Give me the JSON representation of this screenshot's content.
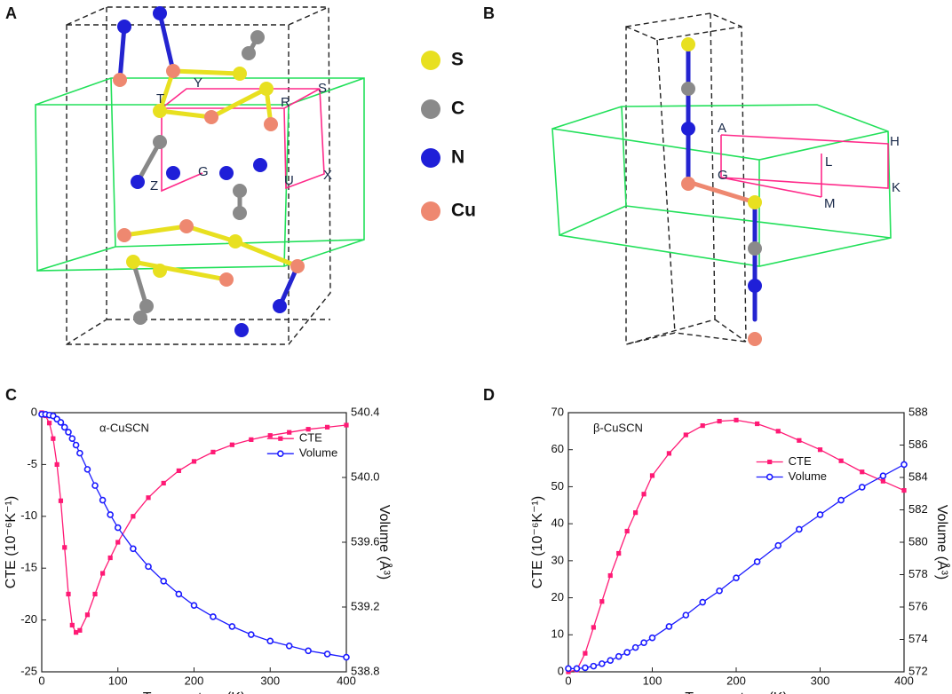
{
  "panel_labels": [
    "A",
    "B",
    "C",
    "D"
  ],
  "structure_a": {
    "atom_legend": [
      "S",
      "C",
      "N",
      "Cu"
    ],
    "kpoints": [
      "T",
      "Y",
      "R",
      "S",
      "Z",
      "G",
      "U",
      "X"
    ]
  },
  "structure_b": {
    "kpoints": [
      "A",
      "H",
      "L",
      "G",
      "K",
      "M"
    ]
  },
  "chart_data": [
    {
      "type": "line",
      "annotation": "α-CuSCN",
      "x_label": "Temperature (K)",
      "y_label": "CTE (10⁻⁶K⁻¹)",
      "y2_label": "Volume (Å³)",
      "legend": "center right",
      "xlim": [
        0,
        400
      ],
      "xticks": [
        0,
        100,
        200,
        300,
        400
      ],
      "ylim": [
        -25,
        0
      ],
      "yticks": [
        0,
        -5,
        -10,
        -15,
        -20,
        -25
      ],
      "y2lim": [
        538.8,
        540.4
      ],
      "y2ticks": [
        538.8,
        539.2,
        539.6,
        {
          "value": 540,
          "label": "540.0"
        },
        540.4
      ],
      "x": [
        0,
        5,
        10,
        15,
        20,
        25,
        30,
        35,
        40,
        45,
        50,
        60,
        70,
        80,
        90,
        100,
        120,
        140,
        160,
        180,
        200,
        225,
        250,
        275,
        300,
        325,
        350,
        375,
        400
      ],
      "series": [
        {
          "name": "CTE",
          "color": "#ff1a75",
          "marker": "square",
          "values": [
            0,
            -0.3,
            -1,
            -2.5,
            -5,
            -8.5,
            -13,
            -17.5,
            -20.5,
            -21.2,
            -21,
            -19.5,
            -17.5,
            -15.5,
            -14,
            -12.5,
            -10,
            -8.2,
            -6.8,
            -5.6,
            -4.7,
            -3.8,
            -3.1,
            -2.6,
            -2.2,
            -1.9,
            -1.6,
            -1.4,
            -1.2
          ]
        },
        {
          "name": "Volume",
          "color": "#1a1aff",
          "marker": "circle",
          "axis": "y2",
          "values": [
            540.39,
            540.39,
            540.385,
            540.38,
            540.36,
            540.34,
            540.31,
            540.28,
            540.24,
            540.2,
            540.15,
            540.05,
            539.95,
            539.86,
            539.77,
            539.69,
            539.56,
            539.45,
            539.36,
            539.28,
            539.21,
            539.14,
            539.08,
            539.03,
            538.99,
            538.96,
            538.93,
            538.91,
            538.89
          ]
        }
      ]
    },
    {
      "type": "line",
      "annotation": "β-CuSCN",
      "x_label": "Temperature (K)",
      "y_label": "CTE (10⁻⁶K⁻¹)",
      "y2_label": "Volume (Å³)",
      "legend": "upper center",
      "xlim": [
        0,
        400
      ],
      "xticks": [
        0,
        100,
        200,
        300,
        400
      ],
      "ylim": [
        0,
        70
      ],
      "yticks": [
        0,
        10,
        20,
        30,
        40,
        50,
        60,
        70
      ],
      "y2lim": [
        572,
        588
      ],
      "y2ticks": [
        572,
        574,
        576,
        578,
        580,
        582,
        584,
        586,
        588
      ],
      "x": [
        0,
        10,
        20,
        30,
        40,
        50,
        60,
        70,
        80,
        90,
        100,
        120,
        140,
        160,
        180,
        200,
        225,
        250,
        275,
        300,
        325,
        350,
        375,
        400
      ],
      "series": [
        {
          "name": "CTE",
          "color": "#ff1a75",
          "marker": "square",
          "values": [
            0,
            0.5,
            5,
            12,
            19,
            26,
            32,
            38,
            43,
            48,
            53,
            59,
            64,
            66.5,
            67.7,
            68,
            67,
            65,
            62.5,
            60,
            57,
            54,
            51.5,
            49
          ]
        },
        {
          "name": "Volume",
          "color": "#1a1aff",
          "marker": "circle",
          "axis": "y2",
          "values": [
            572.2,
            572.2,
            572.25,
            572.35,
            572.5,
            572.7,
            572.95,
            573.2,
            573.5,
            573.8,
            574.1,
            574.8,
            575.5,
            576.3,
            577.0,
            577.8,
            578.8,
            579.8,
            580.8,
            581.7,
            582.6,
            583.4,
            584.1,
            584.8
          ]
        }
      ]
    }
  ]
}
